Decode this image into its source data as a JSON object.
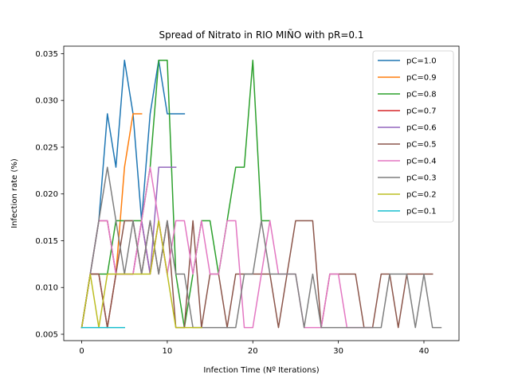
{
  "chart_data": {
    "type": "line",
    "title": "Spread of Nitrato in RIO MIÑO with pR=0.1",
    "xlabel": "Infection Time (Nº Iterations)",
    "ylabel": "Infection rate (%)",
    "xlim": [
      -2.1,
      44.1
    ],
    "ylim": [
      0.00432,
      0.0358
    ],
    "xticks": [
      0,
      10,
      20,
      30,
      40
    ],
    "yticks": [
      0.005,
      0.01,
      0.015,
      0.02,
      0.025,
      0.03,
      0.035
    ],
    "ytick_labels": [
      "0.005",
      "0.010",
      "0.015",
      "0.020",
      "0.025",
      "0.030",
      "0.035"
    ],
    "legend_position": "upper right",
    "series": [
      {
        "name": "pC=1.0",
        "color": "#1f77b4",
        "x": [
          0,
          1,
          2,
          3,
          4,
          5,
          6,
          7,
          8,
          9,
          10,
          11,
          12
        ],
        "y": [
          0.00571,
          0.01143,
          0.01714,
          0.02857,
          0.02286,
          0.03429,
          0.02857,
          0.01714,
          0.02857,
          0.03429,
          0.02857,
          0.02857,
          0.02857
        ]
      },
      {
        "name": "pC=0.9",
        "color": "#ff7f0e",
        "x": [
          0,
          1,
          2,
          3,
          4,
          5,
          6,
          7
        ],
        "y": [
          0.00571,
          0.01143,
          0.01714,
          0.01714,
          0.01143,
          0.02286,
          0.02857,
          0.02857
        ]
      },
      {
        "name": "pC=0.8",
        "color": "#2ca02c",
        "x": [
          0,
          1,
          2,
          3,
          4,
          5,
          6,
          7,
          8,
          9,
          10,
          11,
          12,
          13,
          14,
          15,
          16,
          17,
          18,
          19,
          20,
          21,
          22
        ],
        "y": [
          0.00571,
          0.01143,
          0.01143,
          0.01143,
          0.01714,
          0.01714,
          0.01714,
          0.01714,
          0.02286,
          0.03429,
          0.03429,
          0.01143,
          0.00571,
          0.01143,
          0.01714,
          0.01714,
          0.01143,
          0.01714,
          0.02286,
          0.02286,
          0.03429,
          0.01714,
          0.01714
        ]
      },
      {
        "name": "pC=0.7",
        "color": "#d62728",
        "x": [
          0,
          1,
          2,
          3,
          4,
          5,
          6,
          7,
          8,
          9,
          10
        ],
        "y": [
          0.00571,
          0.01143,
          0.01143,
          0.00571,
          0.01143,
          0.01143,
          0.01143,
          0.01714,
          0.01143,
          0.01714,
          0.01143
        ]
      },
      {
        "name": "pC=0.6",
        "color": "#9467bd",
        "x": [
          0,
          1,
          2,
          3,
          4,
          5,
          6,
          7,
          8,
          9,
          10,
          11
        ],
        "y": [
          0.00571,
          0.01143,
          0.01714,
          0.01714,
          0.01143,
          0.01143,
          0.01143,
          0.01714,
          0.01143,
          0.02286,
          0.02286,
          0.02286
        ]
      },
      {
        "name": "pC=0.5",
        "color": "#8c564b",
        "x": [
          0,
          1,
          2,
          3,
          4,
          5,
          6,
          7,
          8,
          9,
          10,
          11,
          12,
          13,
          14,
          15,
          16,
          17,
          18,
          19,
          20,
          21,
          22,
          23,
          24,
          25,
          26,
          27,
          28,
          29,
          30,
          31,
          32,
          33,
          34,
          35,
          36,
          37,
          38,
          39,
          40,
          41
        ],
        "y": [
          0.00571,
          0.01143,
          0.01143,
          0.00571,
          0.01143,
          0.01714,
          0.01714,
          0.01143,
          0.01714,
          0.01143,
          0.01714,
          0.00571,
          0.00571,
          0.01714,
          0.00571,
          0.01143,
          0.01143,
          0.00571,
          0.01143,
          0.01143,
          0.01143,
          0.01143,
          0.01143,
          0.00571,
          0.01143,
          0.01714,
          0.01714,
          0.01714,
          0.00571,
          0.01143,
          0.01143,
          0.01143,
          0.01143,
          0.00571,
          0.00571,
          0.01143,
          0.01143,
          0.00571,
          0.01143,
          0.01143,
          0.01143,
          0.01143
        ]
      },
      {
        "name": "pC=0.4",
        "color": "#e377c2",
        "x": [
          0,
          1,
          2,
          3,
          4,
          5,
          6,
          7,
          8,
          9,
          10,
          11,
          12,
          13,
          14,
          15,
          16,
          17,
          18,
          19,
          20,
          21,
          22,
          23,
          24,
          25,
          26,
          27,
          28,
          29,
          30,
          31,
          32,
          33,
          34
        ],
        "y": [
          0.00571,
          0.01143,
          0.01714,
          0.01714,
          0.01143,
          0.01143,
          0.01143,
          0.01714,
          0.02286,
          0.01714,
          0.01143,
          0.01714,
          0.01714,
          0.01143,
          0.01714,
          0.01143,
          0.01143,
          0.01714,
          0.01714,
          0.00571,
          0.00571,
          0.01143,
          0.01714,
          0.01143,
          0.01143,
          0.01143,
          0.00571,
          0.00571,
          0.00571,
          0.01143,
          0.01143,
          0.00571,
          0.00571,
          0.00571,
          0.00571
        ]
      },
      {
        "name": "pC=0.3",
        "color": "#7f7f7f",
        "x": [
          0,
          1,
          2,
          3,
          4,
          5,
          6,
          7,
          8,
          9,
          10,
          11,
          12,
          13,
          14,
          15,
          16,
          17,
          18,
          19,
          20,
          21,
          22,
          23,
          24,
          25,
          26,
          27,
          28,
          29,
          30,
          31,
          32,
          33,
          34,
          35,
          36,
          37,
          38,
          39,
          40,
          41,
          42
        ],
        "y": [
          0.00571,
          0.01143,
          0.01714,
          0.02286,
          0.01714,
          0.01143,
          0.01714,
          0.01143,
          0.01714,
          0.01143,
          0.01714,
          0.01143,
          0.01143,
          0.00571,
          0.00571,
          0.00571,
          0.00571,
          0.00571,
          0.00571,
          0.01143,
          0.01143,
          0.01714,
          0.01143,
          0.01143,
          0.01143,
          0.01143,
          0.00571,
          0.01143,
          0.00571,
          0.00571,
          0.00571,
          0.00571,
          0.00571,
          0.00571,
          0.00571,
          0.00571,
          0.01143,
          0.01143,
          0.01143,
          0.00571,
          0.01143,
          0.00571,
          0.00571
        ]
      },
      {
        "name": "pC=0.2",
        "color": "#bcbd22",
        "x": [
          0,
          1,
          2,
          3,
          4,
          5,
          6,
          7,
          8,
          9,
          10,
          11,
          12,
          13,
          14
        ],
        "y": [
          0.00571,
          0.01143,
          0.00571,
          0.01143,
          0.01143,
          0.01143,
          0.01143,
          0.01143,
          0.01143,
          0.01714,
          0.01143,
          0.00571,
          0.00571,
          0.00571,
          0.00571
        ]
      },
      {
        "name": "pC=0.1",
        "color": "#17becf",
        "x": [
          0,
          1,
          2,
          3,
          4,
          5
        ],
        "y": [
          0.00571,
          0.00571,
          0.00571,
          0.00571,
          0.00571,
          0.00571
        ]
      }
    ]
  }
}
